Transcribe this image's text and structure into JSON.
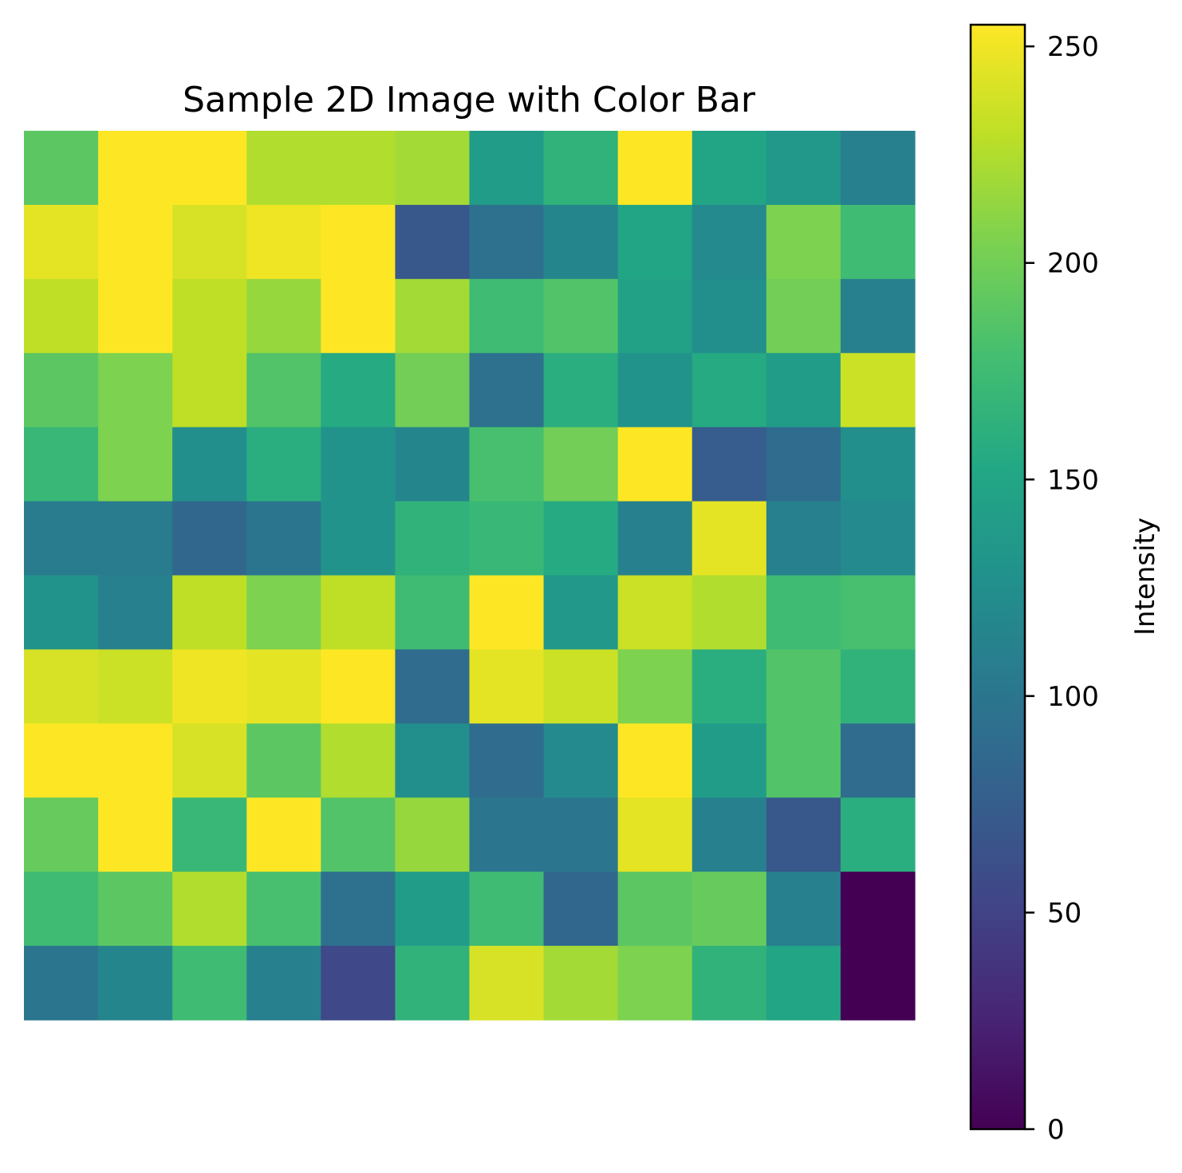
{
  "chart_data": {
    "type": "heatmap",
    "title": "Sample 2D Image with Color Bar",
    "colorbar": {
      "label": "Intensity",
      "range": [
        0,
        255
      ],
      "ticks": [
        0,
        50,
        100,
        150,
        200,
        250
      ],
      "colormap": "viridis"
    },
    "grid": false,
    "rows": 12,
    "cols": 12,
    "values": [
      [
        190,
        255,
        255,
        225,
        225,
        220,
        140,
        165,
        255,
        150,
        135,
        110
      ],
      [
        245,
        255,
        240,
        250,
        255,
        70,
        95,
        115,
        150,
        120,
        205,
        175
      ],
      [
        230,
        255,
        230,
        215,
        255,
        220,
        175,
        185,
        145,
        125,
        200,
        110
      ],
      [
        190,
        205,
        230,
        185,
        155,
        200,
        95,
        160,
        130,
        155,
        140,
        235
      ],
      [
        170,
        205,
        125,
        160,
        130,
        115,
        180,
        200,
        255,
        75,
        90,
        125
      ],
      [
        105,
        105,
        85,
        100,
        130,
        165,
        170,
        155,
        110,
        245,
        110,
        120
      ],
      [
        130,
        110,
        230,
        205,
        230,
        175,
        255,
        135,
        235,
        225,
        175,
        180
      ],
      [
        240,
        235,
        250,
        245,
        255,
        90,
        245,
        235,
        205,
        160,
        185,
        165
      ],
      [
        255,
        255,
        240,
        190,
        225,
        125,
        90,
        120,
        255,
        140,
        185,
        90
      ],
      [
        195,
        255,
        170,
        255,
        185,
        215,
        100,
        100,
        245,
        110,
        70,
        160
      ],
      [
        175,
        190,
        225,
        180,
        95,
        140,
        175,
        85,
        190,
        195,
        110,
        0
      ],
      [
        100,
        115,
        175,
        110,
        55,
        165,
        240,
        220,
        205,
        165,
        150,
        0
      ]
    ]
  }
}
